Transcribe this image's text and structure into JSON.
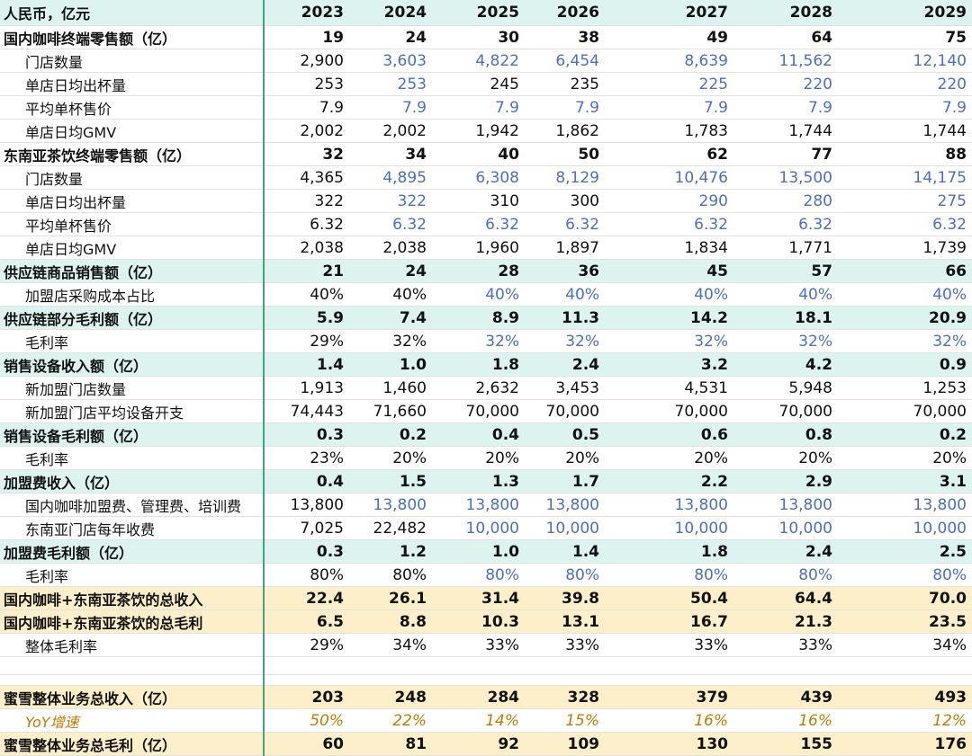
{
  "table": {
    "header": [
      "人民币，亿元",
      "2023",
      "2024",
      "2025",
      "2026",
      "2027",
      "2028",
      "2029"
    ],
    "rows": [
      [
        "国内咖啡终端零售额（亿）",
        "19",
        "24",
        "30",
        "38",
        "49",
        "64",
        "75"
      ],
      [
        "门店数量",
        "2,900",
        "3,603",
        "4,822",
        "6,454",
        "8,639",
        "11,562",
        "12,140"
      ],
      [
        "单店日均出杯量",
        "253",
        "253",
        "245",
        "235",
        "225",
        "220",
        "220"
      ],
      [
        "平均单杯售价",
        "7.9",
        "7.9",
        "7.9",
        "7.9",
        "7.9",
        "7.9",
        "7.9"
      ],
      [
        "单店日均GMV",
        "2,002",
        "2,002",
        "1,942",
        "1,862",
        "1,783",
        "1,744",
        "1,744"
      ],
      [
        "东南亚茶饮终端零售额（亿）",
        "32",
        "34",
        "40",
        "50",
        "62",
        "77",
        "88"
      ],
      [
        "门店数量",
        "4,365",
        "4,895",
        "6,308",
        "8,129",
        "10,476",
        "13,500",
        "14,175"
      ],
      [
        "单店日均出杯量",
        "322",
        "322",
        "310",
        "300",
        "290",
        "280",
        "275"
      ],
      [
        "平均单杯售价",
        "6.32",
        "6.32",
        "6.32",
        "6.32",
        "6.32",
        "6.32",
        "6.32"
      ],
      [
        "单店日均GMV",
        "2,038",
        "2,038",
        "1,960",
        "1,897",
        "1,834",
        "1,771",
        "1,739"
      ],
      [
        "供应链商品销售额（亿）",
        "21",
        "24",
        "28",
        "36",
        "45",
        "57",
        "66"
      ],
      [
        "加盟店采购成本占比",
        "40%",
        "40%",
        "40%",
        "40%",
        "40%",
        "40%",
        "40%"
      ],
      [
        "供应链部分毛利额（亿）",
        "5.9",
        "7.4",
        "8.9",
        "11.3",
        "14.2",
        "18.1",
        "20.9"
      ],
      [
        "毛利率",
        "29%",
        "32%",
        "32%",
        "32%",
        "32%",
        "32%",
        "32%"
      ],
      [
        "销售设备收入额（亿）",
        "1.4",
        "1.0",
        "1.8",
        "2.4",
        "3.2",
        "4.2",
        "0.9"
      ],
      [
        "新加盟门店数量",
        "1,913",
        "1,460",
        "2,632",
        "3,453",
        "4,531",
        "5,948",
        "1,253"
      ],
      [
        "新加盟门店平均设备开支",
        "74,443",
        "71,660",
        "70,000",
        "70,000",
        "70,000",
        "70,000",
        "70,000"
      ],
      [
        "销售设备毛利额（亿）",
        "0.3",
        "0.2",
        "0.4",
        "0.5",
        "0.6",
        "0.8",
        "0.2"
      ],
      [
        "毛利率",
        "23%",
        "20%",
        "20%",
        "20%",
        "20%",
        "20%",
        "20%"
      ],
      [
        "加盟费收入（亿）",
        "0.4",
        "1.5",
        "1.3",
        "1.7",
        "2.2",
        "2.9",
        "3.1"
      ],
      [
        "国内咖啡加盟费、管理费、培训费",
        "13,800",
        "13,800",
        "13,800",
        "13,800",
        "13,800",
        "13,800",
        "13,800"
      ],
      [
        "东南亚门店每年收费",
        "7,025",
        "22,482",
        "10,000",
        "10,000",
        "10,000",
        "10,000",
        "10,000"
      ],
      [
        "加盟费毛利额（亿）",
        "0.3",
        "1.2",
        "1.0",
        "1.4",
        "1.8",
        "2.4",
        "2.5"
      ],
      [
        "毛利率",
        "80%",
        "80%",
        "80%",
        "80%",
        "80%",
        "80%",
        "80%"
      ],
      [
        "国内咖啡+东南亚茶饮的总收入",
        "22.4",
        "26.1",
        "31.4",
        "39.8",
        "50.4",
        "64.4",
        "70.0"
      ],
      [
        "国内咖啡+东南亚茶饮的总毛利",
        "6.5",
        "8.8",
        "10.3",
        "13.1",
        "16.7",
        "21.3",
        "23.5"
      ],
      [
        "整体毛利率",
        "29%",
        "34%",
        "33%",
        "33%",
        "33%",
        "33%",
        "34%"
      ],
      [
        "蜜雪整体业务总收入（亿）",
        "203",
        "248",
        "284",
        "328",
        "379",
        "439",
        "493"
      ],
      [
        "YoY增速",
        "50%",
        "22%",
        "14%",
        "15%",
        "16%",
        "16%",
        "12%"
      ],
      [
        "蜜雪整体业务总毛利（亿）",
        "60",
        "81",
        "92",
        "109",
        "130",
        "155",
        "176"
      ]
    ]
  }
}
